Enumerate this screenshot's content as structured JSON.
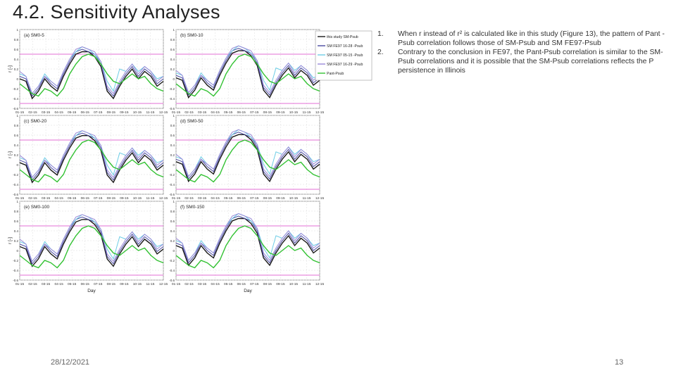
{
  "slide": {
    "title": "4.2. Sensitivity Analyses",
    "date": "28/12/2021",
    "page": "13"
  },
  "notes": [
    {
      "num": "1.",
      "text": "When r instead of r² is calculated like in this study (Figure 13), the pattern of Pant -Psub correlation follows those of SM-Psub and SM FE97-Psub"
    },
    {
      "num": "2.",
      "text": "Contrary to the conclusion in FE97, the Pant-Psub correlation is similar to the SM-Psub correlations and it is possible that the SM-Psub correlations reflects the P persistence in Illinois"
    }
  ],
  "colors": {
    "this_study": "#1a1a1a",
    "fe97_16_28": "#4a4aa0",
    "fe97_05_15": "#6ecde6",
    "fe97_16_29": "#9a8ad8",
    "pant": "#33c233",
    "sig_line": "#e36fd6"
  },
  "chart_data": {
    "type": "line",
    "ylabel": "r [-]",
    "xlabel": "Day",
    "ylim": [
      -0.6,
      1.0
    ],
    "yticks": [
      "1",
      "0.8",
      "0.6",
      "0.4",
      "0.2",
      "0",
      "-0.2",
      "-0.4",
      "-0.6"
    ],
    "categories": [
      "01-15",
      "02-15",
      "03-15",
      "04-15",
      "05-15",
      "06-15",
      "07-15",
      "08-15",
      "09-15",
      "10-15",
      "11-15",
      "12-15"
    ],
    "significance": [
      0.5,
      -0.5
    ],
    "legend": [
      "this study SM-Psub",
      "SM FE97 16-28 -Psub",
      "SM FE97 05-15 -Psub",
      "SM FE97 16-29 -Psub",
      "Pant-Psub"
    ],
    "panels": [
      {
        "label": "(a) SM0-5"
      },
      {
        "label": "(b) SM0-10"
      },
      {
        "label": "(c) SM0-20"
      },
      {
        "label": "(d) SM0-50"
      },
      {
        "label": "(e) SM0-100"
      },
      {
        "label": "(f) SM0-150"
      }
    ],
    "series_shape": [
      {
        "name": "this study SM-Psub",
        "values": [
          0.05,
          0.0,
          -0.35,
          -0.2,
          0.05,
          -0.1,
          -0.2,
          0.1,
          0.35,
          0.55,
          0.6,
          0.6,
          0.5,
          0.3,
          -0.2,
          -0.35,
          -0.1,
          0.1,
          0.25,
          0.05,
          0.2,
          0.1,
          -0.1,
          0.0
        ]
      },
      {
        "name": "SM FE97 16-28 -Psub",
        "values": [
          0.1,
          0.05,
          -0.3,
          -0.15,
          0.1,
          -0.05,
          -0.15,
          0.15,
          0.4,
          0.6,
          0.65,
          0.6,
          0.55,
          0.35,
          -0.15,
          -0.3,
          -0.05,
          0.15,
          0.3,
          0.1,
          0.25,
          0.15,
          -0.05,
          0.05
        ]
      },
      {
        "name": "SM FE97 05-15 -Psub",
        "values": [
          0.15,
          0.1,
          -0.25,
          -0.1,
          0.15,
          0.0,
          -0.1,
          0.2,
          0.45,
          0.6,
          0.7,
          0.65,
          0.55,
          0.4,
          0.0,
          -0.2,
          0.25,
          0.2,
          0.35,
          0.2,
          0.3,
          0.2,
          0.05,
          0.1
        ]
      },
      {
        "name": "SM FE97 16-29 -Psub",
        "values": [
          0.2,
          0.1,
          -0.25,
          -0.1,
          0.1,
          0.0,
          -0.1,
          0.2,
          0.45,
          0.65,
          0.7,
          0.65,
          0.6,
          0.4,
          -0.1,
          -0.25,
          0.0,
          0.2,
          0.35,
          0.15,
          0.3,
          0.2,
          0.0,
          0.1
        ]
      },
      {
        "name": "Pant-Psub",
        "values": [
          -0.1,
          -0.2,
          -0.3,
          -0.35,
          -0.2,
          -0.25,
          -0.35,
          -0.2,
          0.1,
          0.3,
          0.45,
          0.5,
          0.45,
          0.3,
          0.1,
          -0.05,
          -0.1,
          0.0,
          0.1,
          0.0,
          0.05,
          -0.1,
          -0.2,
          -0.25
        ]
      }
    ]
  }
}
